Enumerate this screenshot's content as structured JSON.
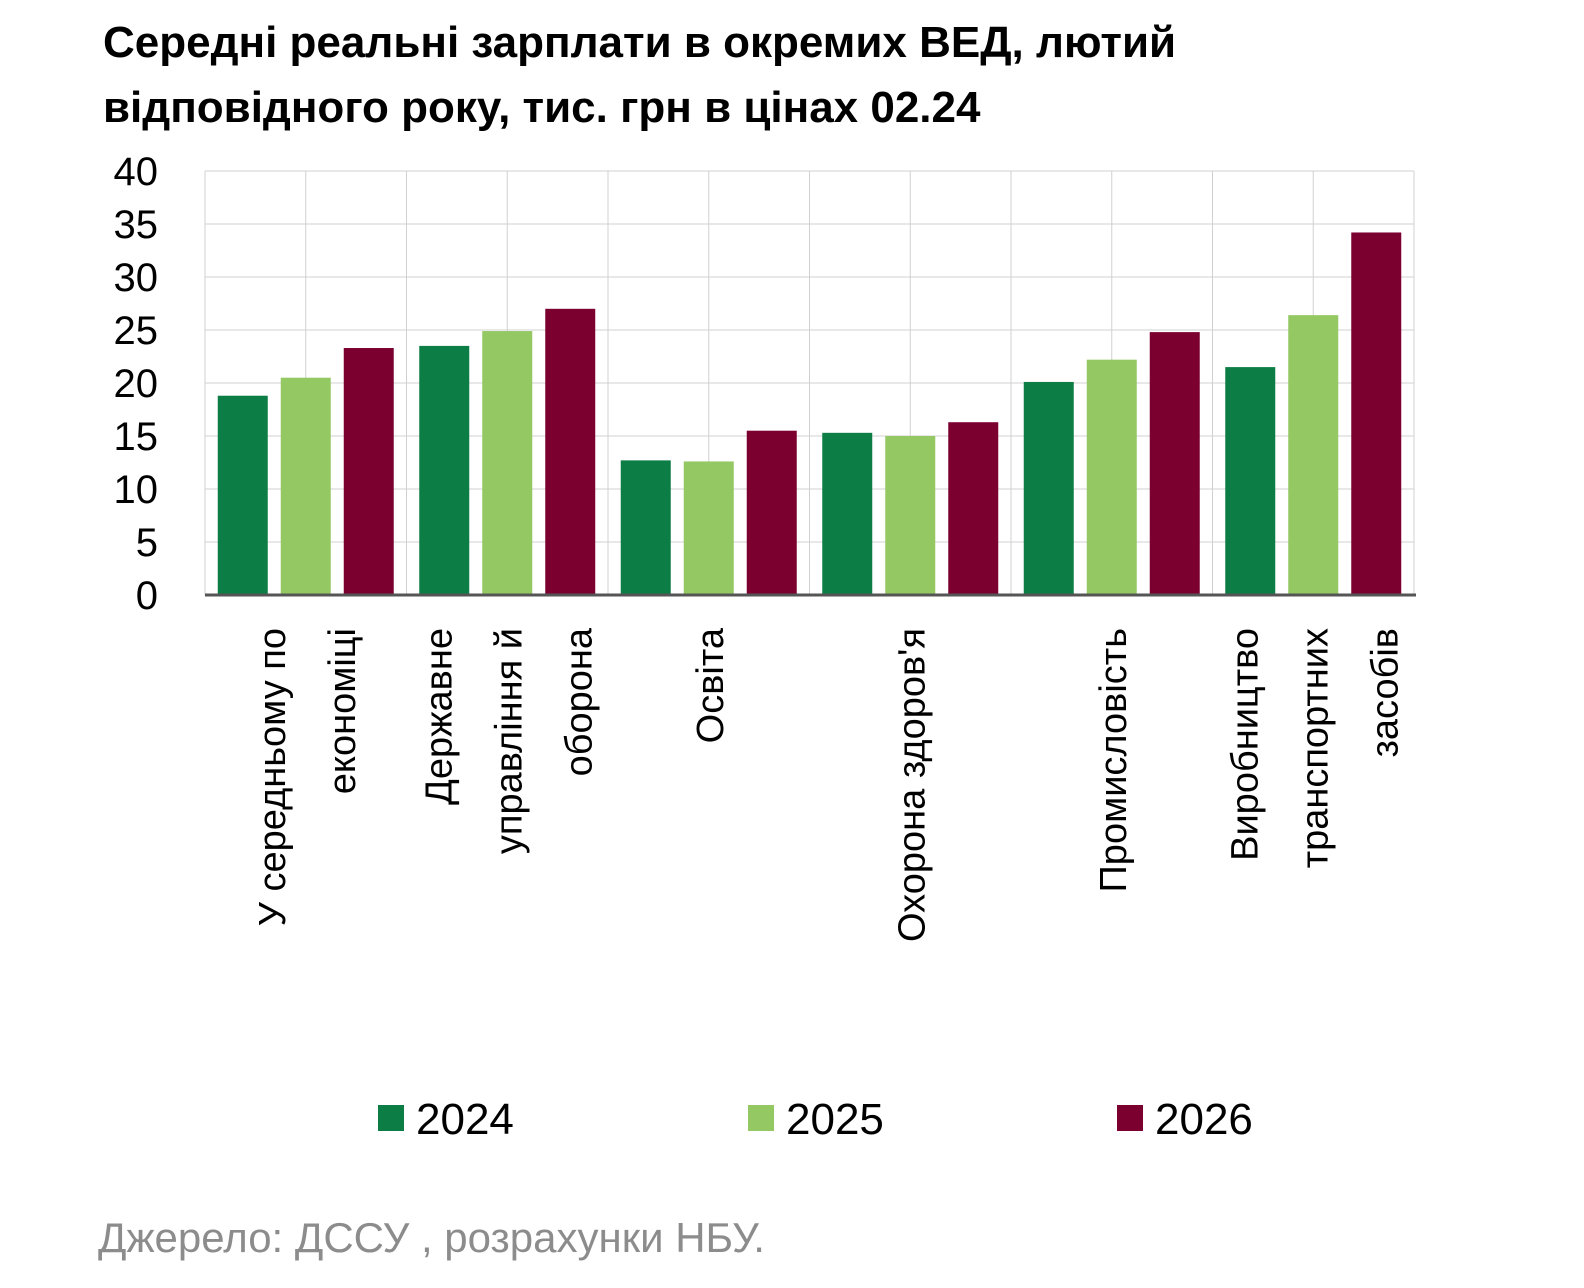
{
  "chart_data": {
    "type": "bar",
    "title_lines": [
      "Середні реальні зарплати в окремих ВЕД, лютий",
      "відповідного року, тис. грн в цінах 02.24"
    ],
    "categories": [
      [
        "У середньому по",
        "економіці"
      ],
      [
        "Державне",
        "управління й",
        "оборона"
      ],
      [
        "Освіта"
      ],
      [
        "Охорона здоров'я"
      ],
      [
        "Промисловість"
      ],
      [
        "Виробництво",
        "транспортних",
        "засобів"
      ]
    ],
    "series": [
      {
        "name": "2024",
        "color": "#0b7d45",
        "values": [
          18.8,
          23.5,
          12.7,
          15.3,
          20.1,
          21.5
        ]
      },
      {
        "name": "2025",
        "color": "#93c863",
        "values": [
          20.5,
          24.9,
          12.6,
          15.0,
          22.2,
          26.4
        ]
      },
      {
        "name": "2026",
        "color": "#7b0030",
        "values": [
          23.3,
          27.0,
          15.5,
          16.3,
          24.8,
          34.2
        ]
      }
    ],
    "yticks": [
      "0",
      "5",
      "10",
      "15",
      "20",
      "25",
      "30",
      "35",
      "40"
    ],
    "ylim": [
      0,
      40
    ],
    "grid": true,
    "legend_position": "bottom",
    "source": "Джерело: ДССУ , розрахунки НБУ."
  }
}
